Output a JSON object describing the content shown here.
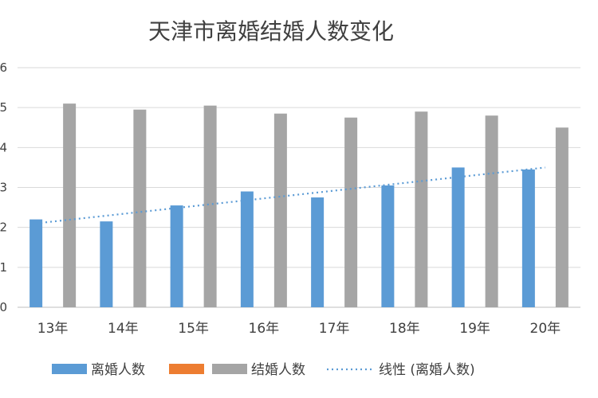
{
  "chart_data": {
    "type": "bar",
    "title": "天津市离婚结婚人数变化",
    "categories": [
      "13年",
      "14年",
      "15年",
      "16年",
      "17年",
      "18年",
      "19年",
      "20年"
    ],
    "ylim": [
      0,
      6
    ],
    "y_tick_values": [
      0,
      1,
      2,
      3,
      4,
      5,
      6
    ],
    "grid": true,
    "legend_position": "bottom",
    "series": [
      {
        "name": "离婚人数",
        "color": "#5B9BD5",
        "values": [
          2.2,
          2.15,
          2.55,
          2.9,
          2.75,
          3.05,
          3.5,
          3.45
        ]
      },
      {
        "name": "",
        "color": "#ED7D31",
        "values": [
          0,
          0,
          0,
          0,
          0,
          0,
          0,
          0
        ]
      },
      {
        "name": "结婚人数",
        "color": "#A5A5A5",
        "values": [
          5.1,
          4.95,
          5.05,
          4.85,
          4.75,
          4.9,
          4.8,
          4.5
        ]
      }
    ],
    "trendline": {
      "name": "线性 (离婚人数)",
      "type": "linear",
      "of": "离婚人数",
      "color": "#5B9BD5",
      "start": 2.1,
      "end": 3.5
    }
  }
}
